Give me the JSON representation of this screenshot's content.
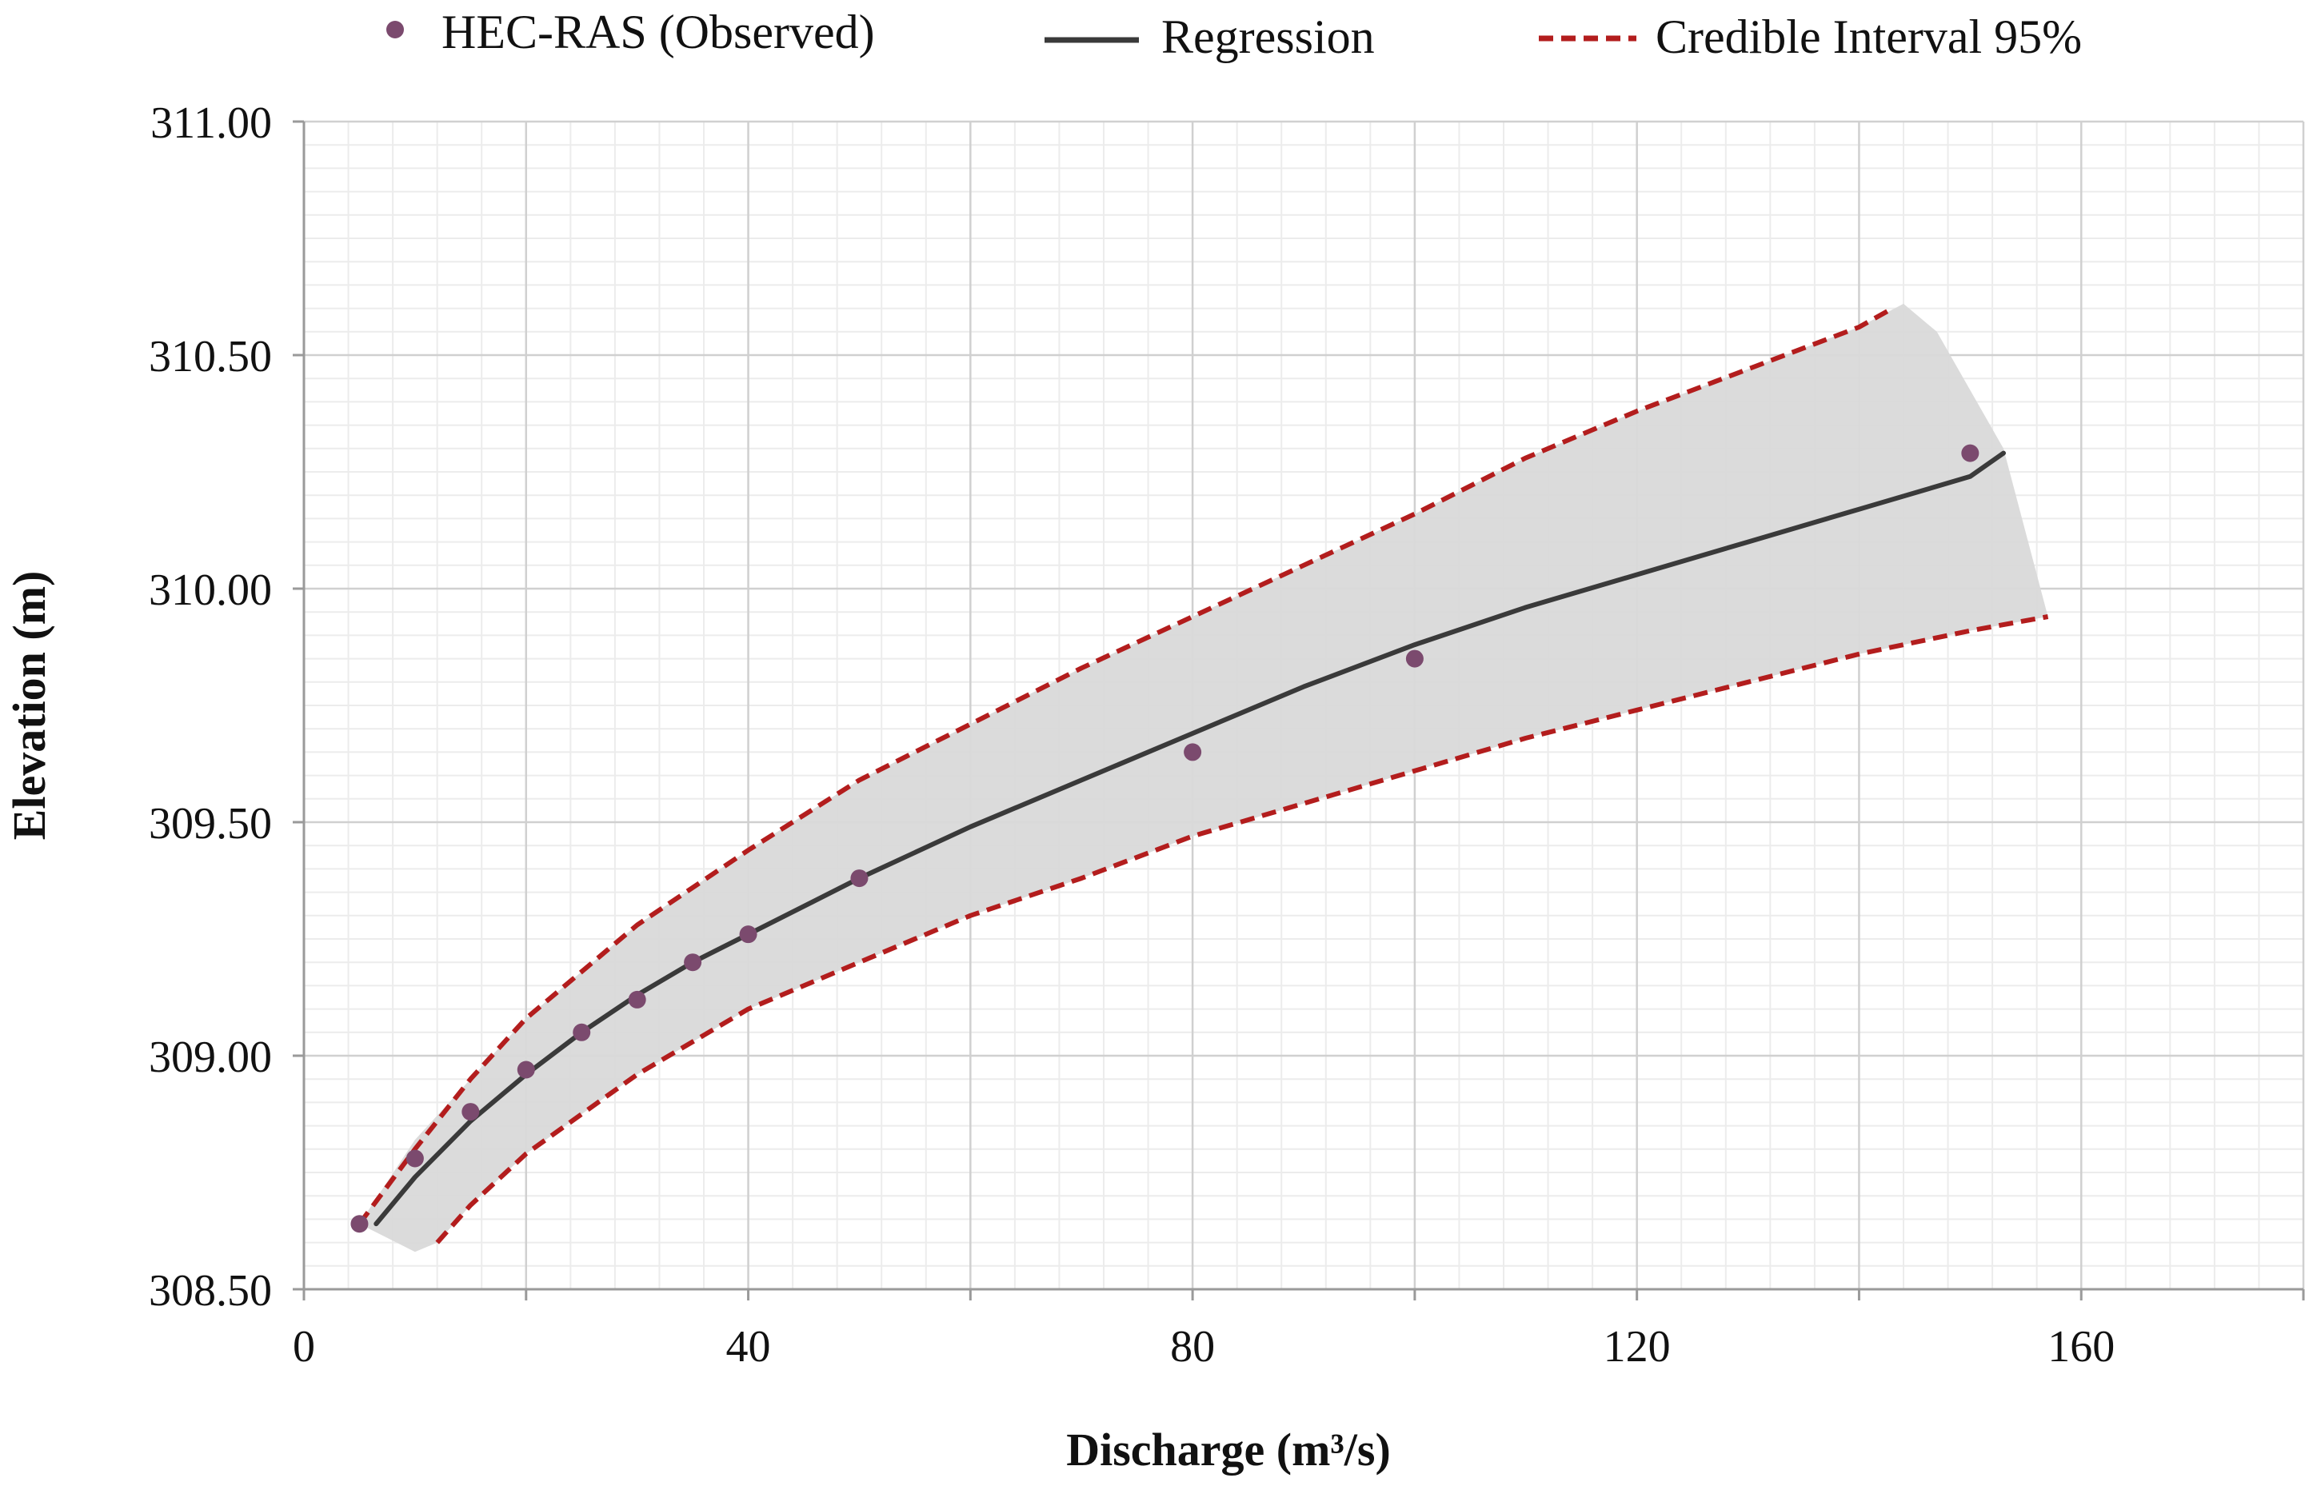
{
  "chart_data": {
    "type": "scatter",
    "xlabel": "Discharge (m³/s)",
    "ylabel": "Elevation (m)",
    "xlim": [
      0,
      180
    ],
    "ylim": [
      308.5,
      311.0
    ],
    "x_ticks": [
      0,
      40,
      80,
      120,
      160
    ],
    "x_tick_labels": [
      "0",
      "40",
      "80",
      "120",
      "160"
    ],
    "y_ticks": [
      308.5,
      309.0,
      309.5,
      310.0,
      310.5,
      311.0
    ],
    "y_tick_labels": [
      "308.50",
      "309.00",
      "309.50",
      "310.00",
      "310.50",
      "311.00"
    ],
    "x_minor_step": 4,
    "y_minor_step": 0.05,
    "grid": true,
    "legend_position": "top",
    "legend": [
      {
        "label": "HEC-RAS (Observed)",
        "kind": "marker",
        "color": "#7b4a6e"
      },
      {
        "label": "Regression",
        "kind": "line",
        "color": "#3a3a3a"
      },
      {
        "label": "Credible Interval 95%",
        "kind": "dashed",
        "color": "#b31d1d"
      }
    ],
    "series": [
      {
        "name": "HEC-RAS (Observed)",
        "type": "scatter",
        "color": "#7b4a6e",
        "x": [
          5,
          10,
          15,
          20,
          25,
          30,
          35,
          40,
          50,
          80,
          100,
          150
        ],
        "y": [
          308.64,
          308.78,
          308.88,
          308.97,
          309.05,
          309.12,
          309.2,
          309.26,
          309.38,
          309.65,
          309.85,
          310.29
        ]
      },
      {
        "name": "Regression",
        "type": "line",
        "color": "#3a3a3a",
        "x": [
          6.5,
          10,
          15,
          20,
          25,
          30,
          35,
          40,
          50,
          60,
          70,
          80,
          90,
          100,
          110,
          120,
          130,
          140,
          150,
          153
        ],
        "y": [
          308.64,
          308.74,
          308.86,
          308.96,
          309.05,
          309.13,
          309.2,
          309.26,
          309.38,
          309.49,
          309.59,
          309.69,
          309.79,
          309.88,
          309.96,
          310.03,
          310.1,
          310.17,
          310.24,
          310.29
        ]
      },
      {
        "name": "Credible Interval 95% (upper)",
        "type": "line",
        "style": "dashed",
        "color": "#b31d1d",
        "x": [
          5,
          10,
          15,
          20,
          30,
          40,
          50,
          60,
          70,
          80,
          90,
          100,
          110,
          120,
          130,
          140,
          143
        ],
        "y": [
          308.64,
          308.8,
          308.95,
          309.08,
          309.28,
          309.44,
          309.59,
          309.71,
          309.83,
          309.94,
          310.05,
          310.16,
          310.28,
          310.38,
          310.47,
          310.56,
          310.6
        ]
      },
      {
        "name": "Credible Interval 95% (lower)",
        "type": "line",
        "style": "dashed",
        "color": "#b31d1d",
        "x": [
          12,
          15,
          20,
          30,
          40,
          50,
          60,
          70,
          80,
          90,
          100,
          110,
          120,
          130,
          140,
          150,
          157
        ],
        "y": [
          308.6,
          308.68,
          308.79,
          308.96,
          309.1,
          309.2,
          309.3,
          309.38,
          309.47,
          309.54,
          309.61,
          309.68,
          309.74,
          309.8,
          309.86,
          309.91,
          309.94
        ]
      },
      {
        "name": "Credible band (shaded)",
        "type": "area",
        "color": "#d9d9d9",
        "x": [
          5,
          10,
          15,
          20,
          30,
          40,
          50,
          60,
          70,
          80,
          90,
          100,
          110,
          120,
          130,
          140,
          144,
          147,
          153,
          157,
          150,
          140,
          130,
          120,
          110,
          100,
          90,
          80,
          70,
          60,
          50,
          40,
          30,
          20,
          15,
          12,
          10
        ],
        "y": [
          308.64,
          308.82,
          308.95,
          309.08,
          309.28,
          309.44,
          309.59,
          309.71,
          309.83,
          309.94,
          310.05,
          310.16,
          310.28,
          310.38,
          310.47,
          310.56,
          310.61,
          310.55,
          310.3,
          309.94,
          309.91,
          309.86,
          309.8,
          309.74,
          309.68,
          309.61,
          309.54,
          309.47,
          309.38,
          309.3,
          309.2,
          309.1,
          308.96,
          308.79,
          308.68,
          308.6,
          308.58
        ]
      }
    ]
  }
}
